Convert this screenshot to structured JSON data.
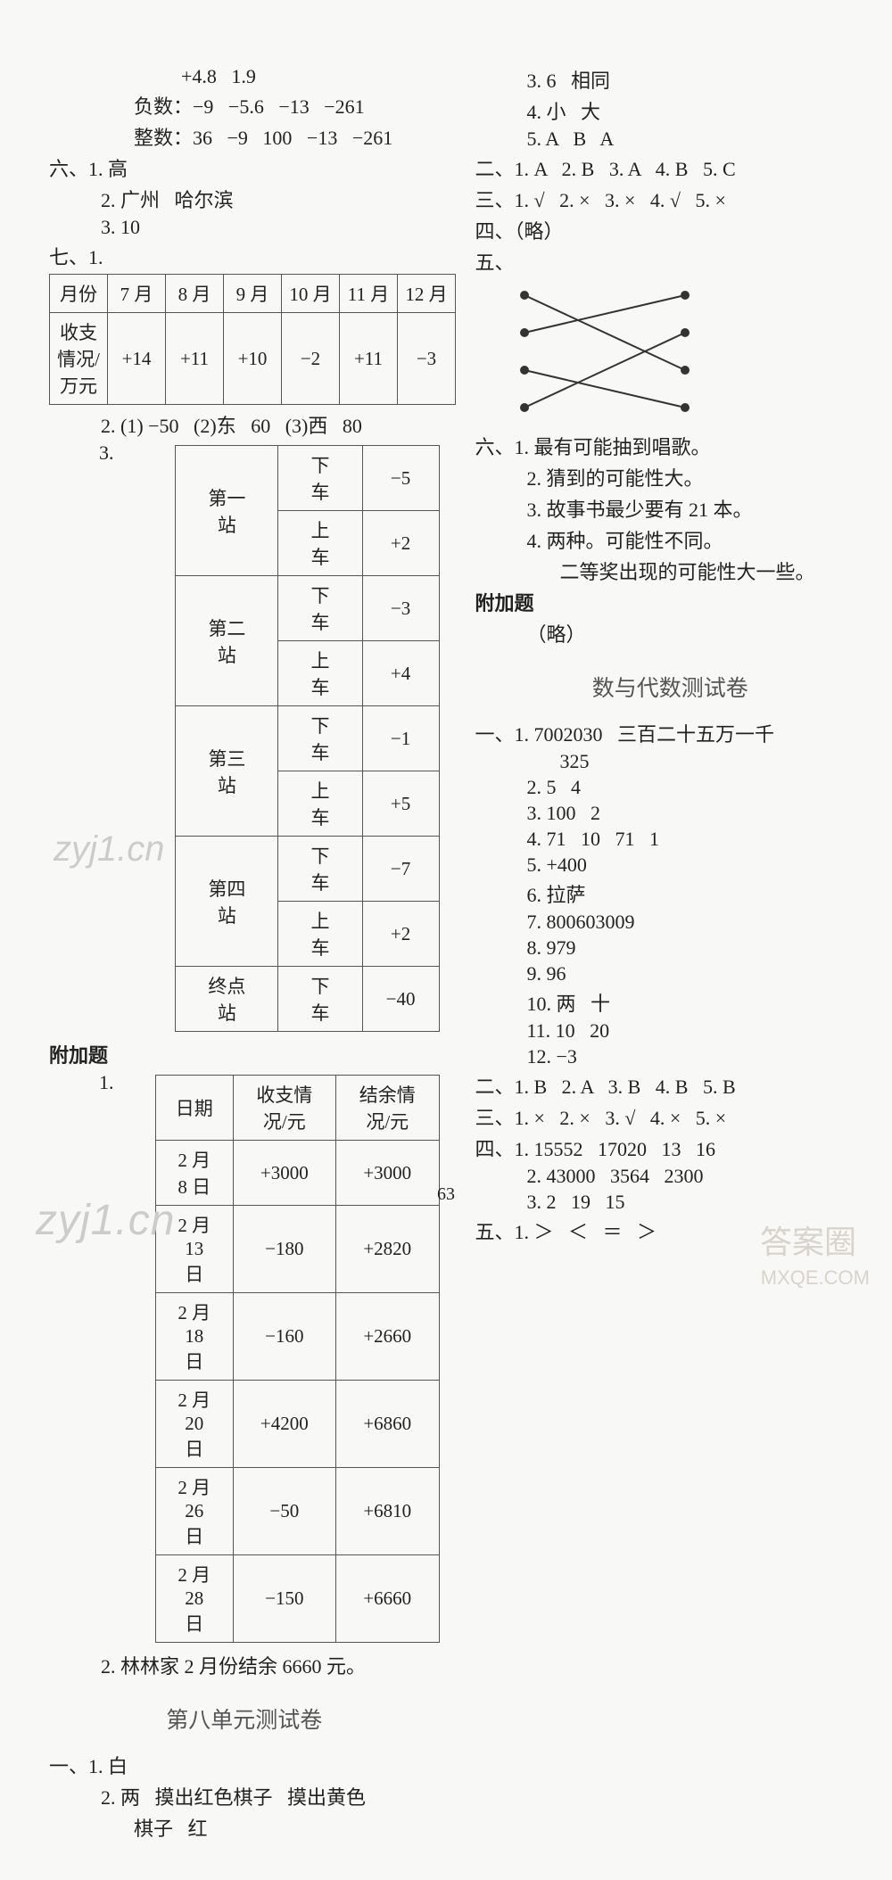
{
  "left": {
    "pre1": "+4.8   1.9",
    "pre2": "负数：−9   −5.6   −13   −261",
    "pre3": "整数：36   −9   100   −13   −261",
    "six_label": "六、",
    "six1": "1. 高",
    "six2": "2. 广州   哈尔滨",
    "six3": "3. 10",
    "seven_label": "七、1.",
    "months_table": {
      "headers": [
        "月份",
        "7 月",
        "8 月",
        "9 月",
        "10 月",
        "11 月",
        "12 月"
      ],
      "row_label": "收支情况/\n万元",
      "row_vals": [
        "+14",
        "+11",
        "+10",
        "−2",
        "+11",
        "−3"
      ]
    },
    "seven2": "2. (1) −50   (2)东   60   (3)西   80",
    "seven3_label": "3.",
    "stations_table": {
      "rows": [
        {
          "station": "第一站",
          "sub": [
            [
              "下车",
              "−5"
            ],
            [
              "上车",
              "+2"
            ]
          ]
        },
        {
          "station": "第二站",
          "sub": [
            [
              "下车",
              "−3"
            ],
            [
              "上车",
              "+4"
            ]
          ]
        },
        {
          "station": "第三站",
          "sub": [
            [
              "下车",
              "−1"
            ],
            [
              "上车",
              "+5"
            ]
          ]
        },
        {
          "station": "第四站",
          "sub": [
            [
              "下车",
              "−7"
            ],
            [
              "上车",
              "+2"
            ]
          ]
        },
        {
          "station": "终点站",
          "sub": [
            [
              "下车",
              "−40"
            ]
          ]
        }
      ]
    },
    "fujia_label": "附加题",
    "fujia1_label": "1.",
    "dates_table": {
      "headers": [
        "日期",
        "收支情况/元",
        "结余情况/元"
      ],
      "rows": [
        [
          "2 月 8 日",
          "+3000",
          "+3000"
        ],
        [
          "2 月 13 日",
          "−180",
          "+2820"
        ],
        [
          "2 月 18 日",
          "−160",
          "+2660"
        ],
        [
          "2 月 20 日",
          "+4200",
          "+6860"
        ],
        [
          "2 月 26 日",
          "−50",
          "+6810"
        ],
        [
          "2 月 28 日",
          "−150",
          "+6660"
        ]
      ]
    },
    "fujia2": "2. 林林家 2 月份结余 6660 元。",
    "unit8_title": "第八单元测试卷",
    "u8_1_label": "一、",
    "u8_1_1": "1. 白",
    "u8_1_2a": "2. 两   摸出红色棋子   摸出黄色",
    "u8_1_2b": "棋子   红"
  },
  "right": {
    "r1": "3. 6   相同",
    "r2": "4. 小   大",
    "r3": "5. A   B   A",
    "r_two": "二、1. A   2. B   3. A   4. B   5. C",
    "r_three": "三、1. √   2. ×   3. ×   4. √   5. ×",
    "r_four": "四、（略）",
    "r_five_label": "五、",
    "matching": {
      "left_pts": [
        [
          25,
          18
        ],
        [
          25,
          60
        ],
        [
          25,
          102
        ],
        [
          25,
          144
        ]
      ],
      "right_pts": [
        [
          205,
          18
        ],
        [
          205,
          60
        ],
        [
          205,
          102
        ],
        [
          205,
          144
        ]
      ],
      "lines": [
        [
          0,
          2
        ],
        [
          1,
          0
        ],
        [
          2,
          3
        ],
        [
          3,
          1
        ]
      ],
      "dot_color": "#333",
      "line_color": "#333",
      "line_width": 2,
      "dot_r": 5
    },
    "r_six_label": "六、",
    "r_six_1": "1. 最有可能抽到唱歌。",
    "r_six_2": "2. 猜到的可能性大。",
    "r_six_3": "3. 故事书最少要有 21 本。",
    "r_six_4a": "4. 两种。可能性不同。",
    "r_six_4b": "二等奖出现的可能性大一些。",
    "r_fujia_label": "附加题",
    "r_fujia_body": "（略）",
    "sd_title": "数与代数测试卷",
    "sd1_label": "一、",
    "sd1_1a": "1. 7002030   三百二十五万一千",
    "sd1_1b": "325",
    "sd1_2": "2. 5   4",
    "sd1_3": "3. 100   2",
    "sd1_4": "4. 71   10   71   1",
    "sd1_5": "5. +400",
    "sd1_6": "6. 拉萨",
    "sd1_7": "7. 800603009",
    "sd1_8": "8. 979",
    "sd1_9": "9. 96",
    "sd1_10": "10. 两   十",
    "sd1_11": "11. 10   20",
    "sd1_12": "12. −3",
    "sd2": "二、1. B   2. A   3. B   4. B   5. B",
    "sd3": "三、1. ×   2. ×   3. √   4. ×   5. ×",
    "sd4_label": "四、",
    "sd4_1": "1. 15552   17020   13   16",
    "sd4_2": "2. 43000   3564   2300",
    "sd4_3": "3. 2   19   15",
    "sd5": "五、1. ＞   ＜   ＝   ＞"
  },
  "page_number": "63",
  "wm1": "zyj1.cn",
  "wm2": "zyj1.cn",
  "wm3a": "答案圈",
  "wm3b": "MXQE.COM"
}
